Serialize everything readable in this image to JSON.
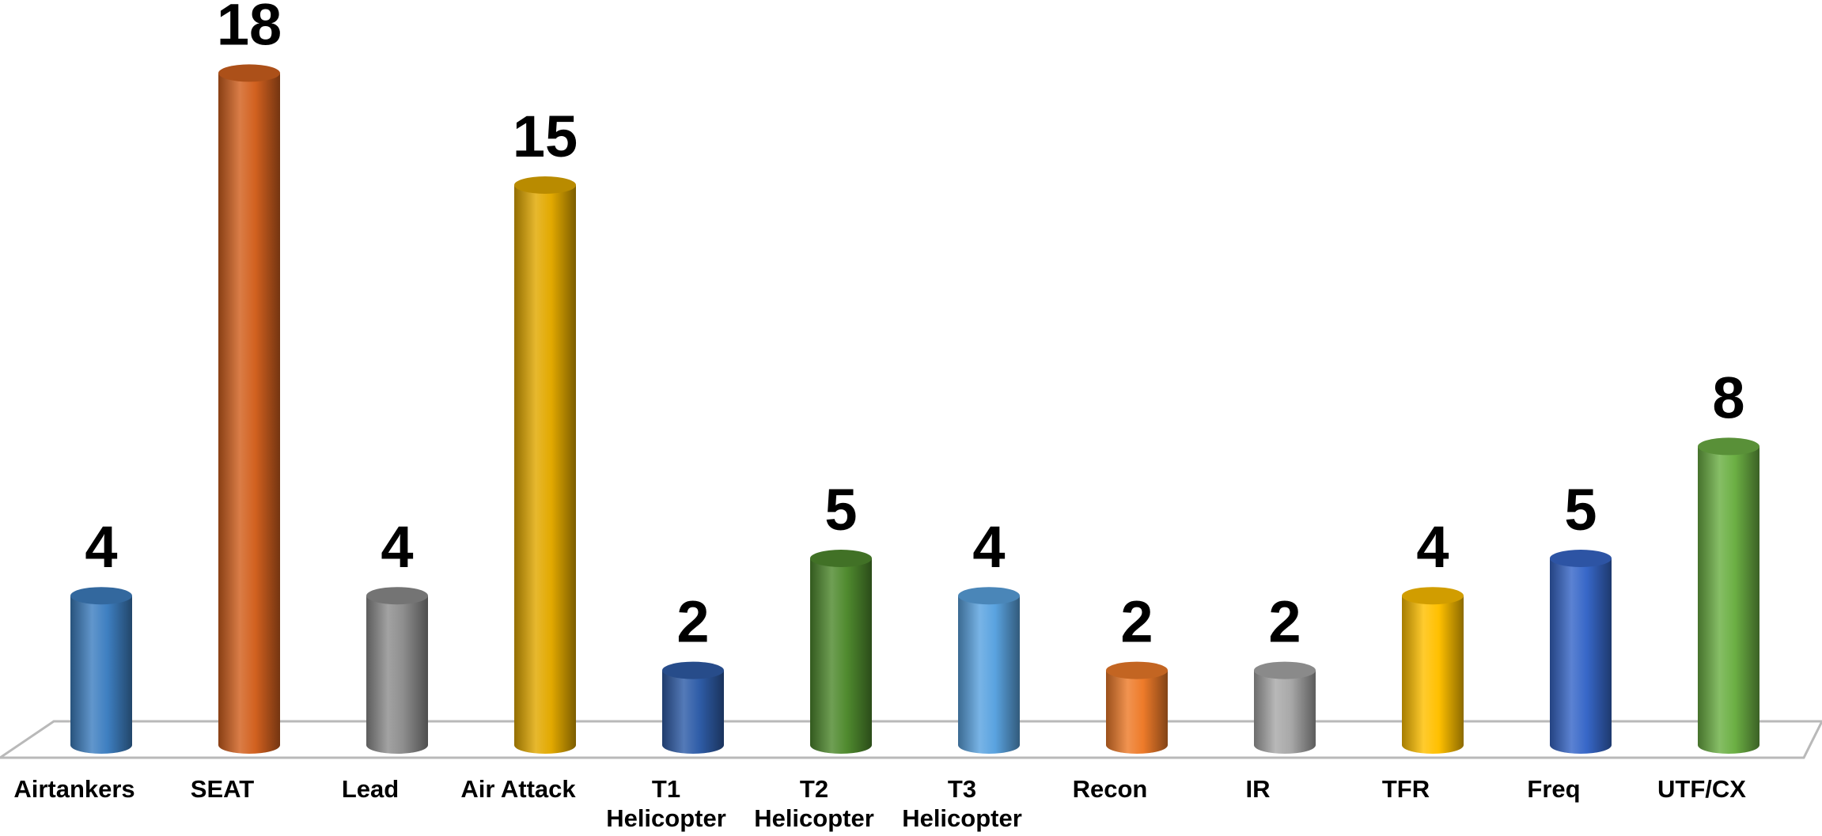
{
  "chart_data": {
    "type": "bar",
    "style": "3d-cylinder",
    "title": "",
    "xlabel": "",
    "ylabel": "",
    "ylim": [
      0,
      18
    ],
    "grid": false,
    "legend": "none",
    "categories": [
      [
        "Airtankers"
      ],
      [
        "SEAT"
      ],
      [
        "Lead"
      ],
      [
        "Air Attack"
      ],
      [
        "T1",
        "Helicopter"
      ],
      [
        "T2",
        "Helicopter"
      ],
      [
        "T3",
        "Helicopter"
      ],
      [
        "Recon"
      ],
      [
        "IR"
      ],
      [
        "TFR"
      ],
      [
        "Freq"
      ],
      [
        "UTF/CX"
      ]
    ],
    "values": [
      4,
      18,
      4,
      15,
      2,
      5,
      4,
      2,
      2,
      4,
      5,
      8
    ],
    "data_labels": [
      "4",
      "18",
      "4",
      "15",
      "2",
      "5",
      "4",
      "2",
      "2",
      "4",
      "5",
      "8"
    ],
    "colors": [
      "#3E7FC1",
      "#D2611F",
      "#8E8E8E",
      "#E2A900",
      "#2F5DA8",
      "#4F8A2E",
      "#5AA3E0",
      "#EE7B2A",
      "#A8A8A8",
      "#FFC000",
      "#3767C8",
      "#6CB044"
    ]
  }
}
